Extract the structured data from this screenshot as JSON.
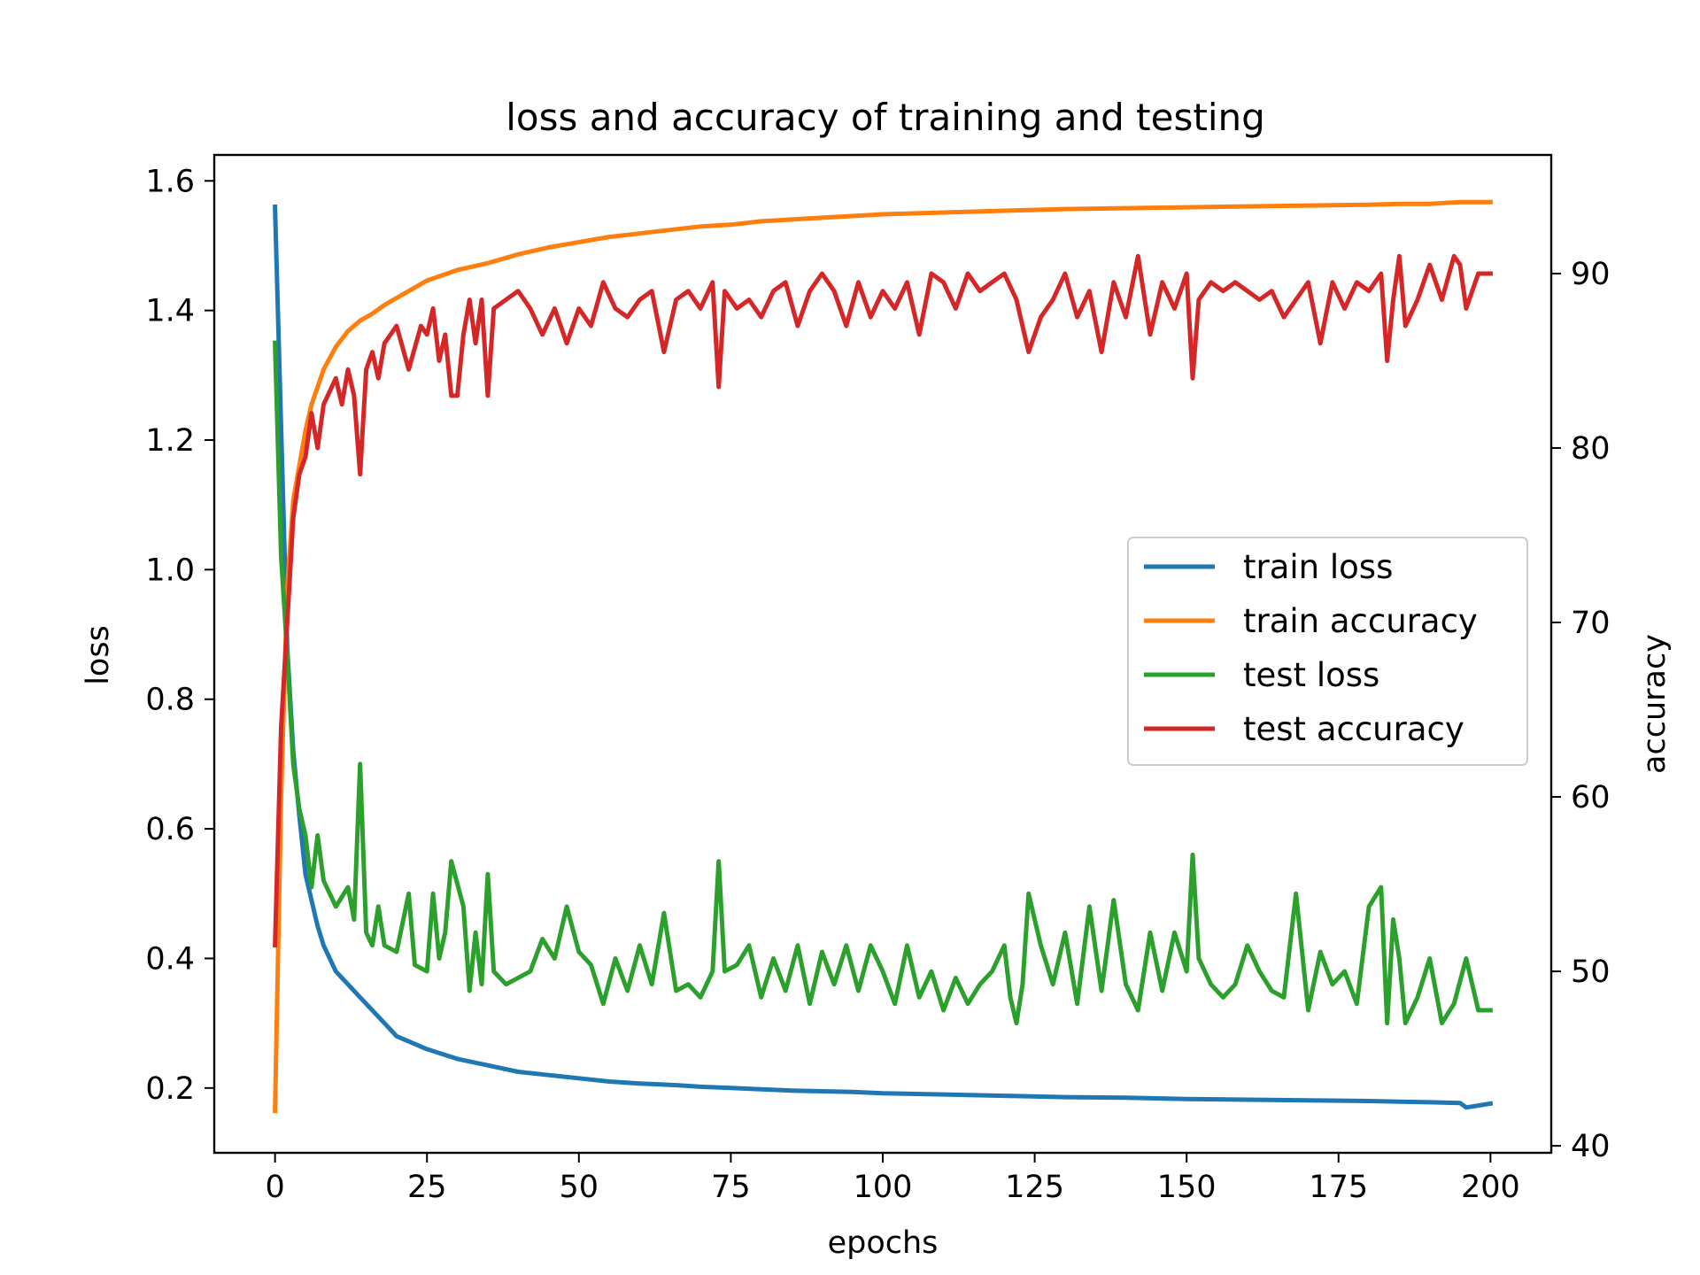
{
  "chart_data": {
    "type": "line",
    "title": "loss and accuracy of training and testing",
    "xlabel": "epochs",
    "ylabel": "loss",
    "y2label": "accuracy",
    "xlim": [
      -10,
      210
    ],
    "ylim": [
      0.1,
      1.64
    ],
    "y2lim": [
      39.6,
      96.8
    ],
    "xticks": [
      0,
      25,
      50,
      75,
      100,
      125,
      150,
      175,
      200
    ],
    "yticks": [
      0.2,
      0.4,
      0.6,
      0.8,
      1.0,
      1.2,
      1.4,
      1.6
    ],
    "y2ticks": [
      40,
      50,
      60,
      70,
      80,
      90
    ],
    "grid": false,
    "legend_position": "center-right",
    "series": [
      {
        "name": "train loss",
        "axis": "left",
        "color": "#1f77b4",
        "x": [
          0,
          1,
          2,
          3,
          4,
          5,
          6,
          7,
          8,
          10,
          12,
          14,
          16,
          18,
          20,
          25,
          30,
          35,
          40,
          45,
          50,
          55,
          60,
          65,
          70,
          75,
          80,
          85,
          90,
          95,
          100,
          110,
          120,
          130,
          140,
          150,
          160,
          170,
          180,
          185,
          190,
          195,
          196,
          200
        ],
        "values": [
          1.56,
          1.22,
          0.88,
          0.72,
          0.62,
          0.53,
          0.49,
          0.45,
          0.42,
          0.38,
          0.36,
          0.34,
          0.32,
          0.3,
          0.28,
          0.26,
          0.245,
          0.235,
          0.225,
          0.22,
          0.215,
          0.21,
          0.207,
          0.205,
          0.202,
          0.2,
          0.198,
          0.196,
          0.195,
          0.194,
          0.192,
          0.19,
          0.188,
          0.186,
          0.185,
          0.183,
          0.182,
          0.181,
          0.18,
          0.179,
          0.178,
          0.177,
          0.17,
          0.176
        ]
      },
      {
        "name": "train accuracy",
        "axis": "right",
        "color": "#ff7f0e",
        "x": [
          0,
          1,
          2,
          3,
          4,
          5,
          6,
          7,
          8,
          10,
          12,
          14,
          16,
          18,
          20,
          25,
          30,
          35,
          40,
          45,
          50,
          55,
          60,
          65,
          70,
          75,
          80,
          85,
          90,
          95,
          100,
          110,
          120,
          130,
          140,
          150,
          160,
          170,
          180,
          185,
          190,
          195,
          200
        ],
        "values": [
          42,
          60,
          72,
          77,
          79,
          81,
          82.5,
          83.5,
          84.5,
          85.8,
          86.7,
          87.3,
          87.7,
          88.2,
          88.6,
          89.6,
          90.2,
          90.6,
          91.1,
          91.5,
          91.8,
          92.1,
          92.3,
          92.5,
          92.7,
          92.8,
          93,
          93.1,
          93.2,
          93.3,
          93.4,
          93.5,
          93.6,
          93.7,
          93.75,
          93.8,
          93.85,
          93.9,
          93.95,
          94,
          94,
          94.1,
          94.1
        ]
      },
      {
        "name": "test loss",
        "axis": "left",
        "color": "#2ca02c",
        "x": [
          0,
          1,
          2,
          3,
          4,
          5,
          6,
          7,
          8,
          10,
          12,
          13,
          14,
          15,
          16,
          17,
          18,
          20,
          22,
          23,
          25,
          26,
          27,
          28,
          29,
          31,
          32,
          33,
          34,
          35,
          36,
          38,
          40,
          42,
          44,
          46,
          48,
          50,
          52,
          54,
          56,
          58,
          60,
          62,
          64,
          66,
          68,
          70,
          72,
          73,
          74,
          76,
          78,
          80,
          82,
          84,
          86,
          88,
          90,
          92,
          94,
          96,
          98,
          100,
          102,
          104,
          106,
          108,
          110,
          112,
          114,
          116,
          118,
          120,
          121,
          122,
          123,
          124,
          126,
          128,
          130,
          132,
          134,
          136,
          138,
          140,
          142,
          144,
          146,
          148,
          150,
          151,
          152,
          154,
          156,
          158,
          160,
          162,
          164,
          166,
          168,
          170,
          172,
          174,
          176,
          178,
          180,
          182,
          183,
          184,
          185,
          186,
          188,
          190,
          192,
          194,
          196,
          198,
          200
        ],
        "values": [
          1.35,
          1.02,
          0.87,
          0.7,
          0.63,
          0.59,
          0.51,
          0.59,
          0.52,
          0.48,
          0.51,
          0.46,
          0.7,
          0.44,
          0.42,
          0.48,
          0.42,
          0.41,
          0.5,
          0.39,
          0.38,
          0.5,
          0.4,
          0.44,
          0.55,
          0.48,
          0.35,
          0.44,
          0.36,
          0.53,
          0.38,
          0.36,
          0.37,
          0.38,
          0.43,
          0.4,
          0.48,
          0.41,
          0.39,
          0.33,
          0.4,
          0.35,
          0.42,
          0.36,
          0.47,
          0.35,
          0.36,
          0.34,
          0.38,
          0.55,
          0.38,
          0.39,
          0.42,
          0.34,
          0.4,
          0.35,
          0.42,
          0.33,
          0.41,
          0.36,
          0.42,
          0.35,
          0.42,
          0.38,
          0.33,
          0.42,
          0.34,
          0.38,
          0.32,
          0.37,
          0.33,
          0.36,
          0.38,
          0.42,
          0.34,
          0.3,
          0.36,
          0.5,
          0.42,
          0.36,
          0.44,
          0.33,
          0.48,
          0.35,
          0.49,
          0.36,
          0.32,
          0.44,
          0.35,
          0.44,
          0.38,
          0.56,
          0.4,
          0.36,
          0.34,
          0.36,
          0.42,
          0.38,
          0.35,
          0.34,
          0.5,
          0.32,
          0.41,
          0.36,
          0.38,
          0.33,
          0.48,
          0.51,
          0.3,
          0.46,
          0.4,
          0.3,
          0.34,
          0.4,
          0.3,
          0.33,
          0.4,
          0.32,
          0.32
        ]
      },
      {
        "name": "test accuracy",
        "axis": "right",
        "color": "#d62728",
        "x": [
          0,
          1,
          2,
          3,
          4,
          5,
          6,
          7,
          8,
          10,
          11,
          12,
          13,
          14,
          15,
          16,
          17,
          18,
          20,
          22,
          24,
          25,
          26,
          27,
          28,
          29,
          30,
          31,
          32,
          33,
          34,
          35,
          36,
          38,
          40,
          42,
          44,
          46,
          48,
          50,
          52,
          54,
          56,
          58,
          60,
          62,
          64,
          66,
          68,
          70,
          72,
          73,
          74,
          76,
          78,
          80,
          82,
          84,
          86,
          88,
          90,
          92,
          94,
          96,
          98,
          100,
          102,
          104,
          106,
          108,
          110,
          112,
          114,
          116,
          118,
          120,
          122,
          124,
          126,
          128,
          130,
          132,
          134,
          136,
          138,
          140,
          142,
          144,
          146,
          148,
          150,
          151,
          152,
          154,
          156,
          158,
          160,
          162,
          164,
          166,
          168,
          170,
          172,
          174,
          176,
          178,
          180,
          182,
          183,
          184,
          185,
          186,
          188,
          190,
          192,
          194,
          195,
          196,
          198,
          200
        ],
        "values": [
          51.5,
          64,
          70,
          76,
          78.5,
          79.5,
          82,
          80,
          82.5,
          84,
          82.5,
          84.5,
          83,
          78.5,
          84.5,
          85.5,
          84,
          86,
          87,
          84.5,
          87,
          86.5,
          88,
          85,
          86.5,
          83,
          83,
          86.5,
          88.5,
          86,
          88.5,
          83,
          88,
          88.5,
          89,
          88,
          86.5,
          88,
          86,
          88,
          87,
          89.5,
          88,
          87.5,
          88.5,
          89,
          85.5,
          88.5,
          89,
          88,
          89.5,
          83.5,
          89,
          88,
          88.5,
          87.5,
          89,
          89.5,
          87,
          89,
          90,
          89,
          87,
          89.5,
          87.5,
          89,
          88,
          89.5,
          86.5,
          90,
          89.5,
          88,
          90,
          89,
          89.5,
          90,
          88.5,
          85.5,
          87.5,
          88.5,
          90,
          87.5,
          89,
          85.5,
          89.5,
          87.5,
          91,
          86.5,
          89.5,
          88,
          90,
          84,
          88.5,
          89.5,
          89,
          89.5,
          89,
          88.5,
          89,
          87.5,
          88.5,
          89.5,
          86,
          89.5,
          88,
          89.5,
          89,
          90,
          85,
          88.5,
          91,
          87,
          88.5,
          90.5,
          88.5,
          91,
          90.5,
          88,
          90,
          90
        ]
      }
    ]
  }
}
